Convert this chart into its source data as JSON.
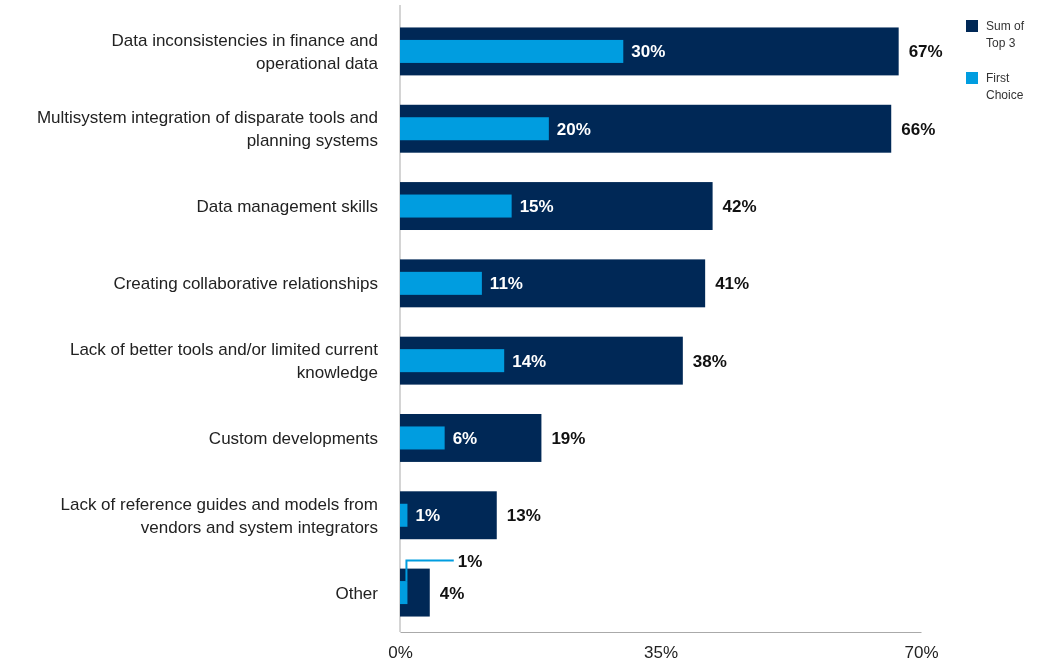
{
  "chart_data": {
    "type": "bar",
    "orientation": "horizontal",
    "categories": [
      "Data inconsistencies in finance and operational data",
      "Multisystem integration of disparate tools and planning systems",
      "Data management skills",
      "Creating collaborative relationships",
      "Lack of better tools and/or limited current knowledge",
      "Custom developments",
      "Lack of reference guides and models from vendors and system integrators",
      "Other"
    ],
    "series": [
      {
        "name": "Sum of Top 3",
        "color": "#002856",
        "values": [
          67,
          66,
          42,
          41,
          38,
          19,
          13,
          4
        ],
        "value_labels": [
          "67%",
          "66%",
          "42%",
          "41%",
          "38%",
          "19%",
          "13%",
          "4%"
        ]
      },
      {
        "name": "First Choice",
        "color": "#009de0",
        "values": [
          30,
          20,
          15,
          11,
          14,
          6,
          1,
          1
        ],
        "value_labels": [
          "30%",
          "20%",
          "15%",
          "11%",
          "14%",
          "6%",
          "1%",
          "1%"
        ]
      }
    ],
    "xlim": [
      0,
      70
    ],
    "xticks": [
      {
        "value": 0,
        "label": "0%"
      },
      {
        "value": 35,
        "label": "35%"
      },
      {
        "value": 70,
        "label": "70%"
      }
    ],
    "grid": false,
    "legend": "top right"
  }
}
